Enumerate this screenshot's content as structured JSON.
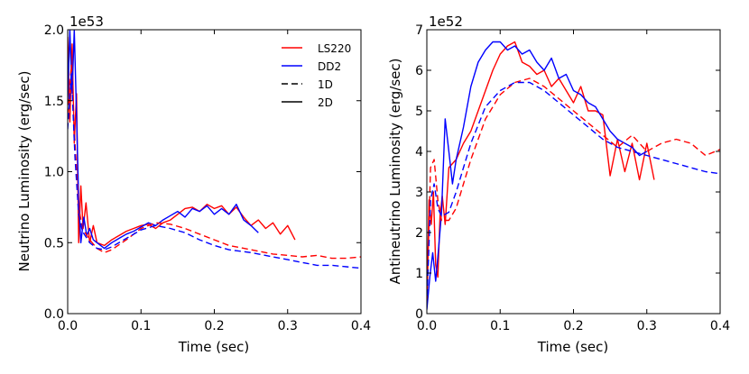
{
  "chart_data": [
    {
      "type": "line",
      "offset_label": "1e53",
      "xlabel": "Time (sec)",
      "ylabel": "Neutrino Luminosity (erg/sec)",
      "xlim": [
        0.0,
        0.4
      ],
      "ylim": [
        0.0,
        2.0
      ],
      "xticks": [
        "0.0",
        "0.1",
        "0.2",
        "0.3",
        "0.4"
      ],
      "yticks": [
        "0.0",
        "0.5",
        "1.0",
        "1.5",
        "2.0"
      ],
      "xtick_values": [
        0.0,
        0.1,
        0.2,
        0.3,
        0.4
      ],
      "ytick_values": [
        0.0,
        0.5,
        1.0,
        1.5,
        2.0
      ],
      "legend": {
        "placement": "top-right",
        "entries": [
          {
            "label": "LS220",
            "color": "#ff0000",
            "style": "solid"
          },
          {
            "label": "DD2",
            "color": "#0000ff",
            "style": "solid"
          },
          {
            "label": "1D",
            "color": "#000000",
            "style": "dashed"
          },
          {
            "label": "2D",
            "color": "#000000",
            "style": "solid"
          }
        ]
      },
      "series": [
        {
          "name": "LS220 2D",
          "color": "#ff0000",
          "style": "solid",
          "x": [
            0.0,
            0.003,
            0.006,
            0.009,
            0.012,
            0.015,
            0.018,
            0.021,
            0.025,
            0.03,
            0.035,
            0.04,
            0.05,
            0.06,
            0.07,
            0.08,
            0.09,
            0.1,
            0.11,
            0.12,
            0.13,
            0.14,
            0.15,
            0.16,
            0.17,
            0.18,
            0.19,
            0.2,
            0.21,
            0.22,
            0.23,
            0.24,
            0.25,
            0.26,
            0.27,
            0.28,
            0.29,
            0.3,
            0.31
          ],
          "y": [
            1.95,
            1.35,
            1.9,
            1.2,
            1.55,
            0.5,
            0.9,
            0.6,
            0.78,
            0.5,
            0.62,
            0.5,
            0.48,
            0.52,
            0.55,
            0.58,
            0.6,
            0.62,
            0.63,
            0.6,
            0.64,
            0.66,
            0.7,
            0.74,
            0.75,
            0.72,
            0.77,
            0.74,
            0.76,
            0.7,
            0.75,
            0.68,
            0.62,
            0.66,
            0.6,
            0.64,
            0.56,
            0.62,
            0.52
          ]
        },
        {
          "name": "DD2 2D",
          "color": "#0000ff",
          "style": "solid",
          "x": [
            0.0,
            0.003,
            0.006,
            0.009,
            0.012,
            0.015,
            0.018,
            0.022,
            0.026,
            0.03,
            0.035,
            0.04,
            0.05,
            0.06,
            0.07,
            0.08,
            0.09,
            0.1,
            0.11,
            0.12,
            0.13,
            0.14,
            0.15,
            0.16,
            0.17,
            0.18,
            0.19,
            0.2,
            0.21,
            0.22,
            0.23,
            0.24,
            0.25,
            0.26
          ],
          "y": [
            1.5,
            2.0,
            1.55,
            2.0,
            1.4,
            0.8,
            0.5,
            0.68,
            0.55,
            0.6,
            0.52,
            0.5,
            0.46,
            0.5,
            0.53,
            0.56,
            0.58,
            0.61,
            0.64,
            0.62,
            0.66,
            0.69,
            0.72,
            0.68,
            0.74,
            0.72,
            0.76,
            0.7,
            0.74,
            0.7,
            0.77,
            0.66,
            0.62,
            0.57
          ]
        },
        {
          "name": "LS220 1D",
          "color": "#ff0000",
          "style": "dashed",
          "x": [
            0.0,
            0.005,
            0.01,
            0.015,
            0.02,
            0.03,
            0.04,
            0.05,
            0.06,
            0.08,
            0.1,
            0.12,
            0.14,
            0.16,
            0.18,
            0.2,
            0.22,
            0.25,
            0.28,
            0.3,
            0.32,
            0.34,
            0.36,
            0.38,
            0.4
          ],
          "y": [
            1.4,
            1.75,
            1.2,
            0.75,
            0.6,
            0.52,
            0.46,
            0.43,
            0.45,
            0.52,
            0.6,
            0.64,
            0.63,
            0.6,
            0.56,
            0.52,
            0.48,
            0.45,
            0.42,
            0.41,
            0.4,
            0.41,
            0.39,
            0.39,
            0.4
          ]
        },
        {
          "name": "DD2 1D",
          "color": "#0000ff",
          "style": "dashed",
          "x": [
            0.0,
            0.005,
            0.01,
            0.015,
            0.02,
            0.03,
            0.04,
            0.05,
            0.06,
            0.08,
            0.1,
            0.12,
            0.14,
            0.16,
            0.18,
            0.2,
            0.22,
            0.25,
            0.28,
            0.3,
            0.32,
            0.34,
            0.36,
            0.38,
            0.4
          ],
          "y": [
            1.3,
            1.7,
            1.1,
            0.7,
            0.58,
            0.5,
            0.46,
            0.45,
            0.47,
            0.53,
            0.59,
            0.62,
            0.6,
            0.57,
            0.52,
            0.48,
            0.45,
            0.43,
            0.4,
            0.38,
            0.36,
            0.34,
            0.34,
            0.33,
            0.32
          ]
        }
      ]
    },
    {
      "type": "line",
      "offset_label": "1e52",
      "xlabel": "Time (sec)",
      "ylabel": "Antineutrino Luminosity (erg/sec)",
      "xlim": [
        0.0,
        0.4
      ],
      "ylim": [
        0,
        7
      ],
      "xticks": [
        "0.0",
        "0.1",
        "0.2",
        "0.3",
        "0.4"
      ],
      "yticks": [
        "0",
        "1",
        "2",
        "3",
        "4",
        "5",
        "6",
        "7"
      ],
      "xtick_values": [
        0.0,
        0.1,
        0.2,
        0.3,
        0.4
      ],
      "ytick_values": [
        0,
        1,
        2,
        3,
        4,
        5,
        6,
        7
      ],
      "series": [
        {
          "name": "LS220 2D",
          "color": "#ff0000",
          "style": "solid",
          "x": [
            0.0,
            0.003,
            0.006,
            0.009,
            0.012,
            0.015,
            0.018,
            0.021,
            0.025,
            0.03,
            0.04,
            0.05,
            0.06,
            0.07,
            0.08,
            0.09,
            0.1,
            0.11,
            0.12,
            0.13,
            0.14,
            0.15,
            0.16,
            0.17,
            0.18,
            0.19,
            0.2,
            0.21,
            0.22,
            0.23,
            0.24,
            0.25,
            0.26,
            0.27,
            0.28,
            0.29,
            0.3,
            0.31
          ],
          "y": [
            0.2,
            2.8,
            2.2,
            3.0,
            1.2,
            0.9,
            2.4,
            2.9,
            2.2,
            3.6,
            3.8,
            4.2,
            4.5,
            5.0,
            5.5,
            6.0,
            6.4,
            6.6,
            6.7,
            6.2,
            6.1,
            5.9,
            6.0,
            5.6,
            5.8,
            5.5,
            5.2,
            5.6,
            5.0,
            5.0,
            4.9,
            3.4,
            4.3,
            3.5,
            4.2,
            3.3,
            4.2,
            3.3
          ]
        },
        {
          "name": "DD2 2D",
          "color": "#0000ff",
          "style": "solid",
          "x": [
            0.0,
            0.004,
            0.008,
            0.012,
            0.016,
            0.02,
            0.025,
            0.03,
            0.035,
            0.04,
            0.05,
            0.06,
            0.07,
            0.08,
            0.09,
            0.1,
            0.11,
            0.12,
            0.13,
            0.14,
            0.15,
            0.16,
            0.17,
            0.18,
            0.19,
            0.2,
            0.21,
            0.22,
            0.23,
            0.24,
            0.25,
            0.26,
            0.27,
            0.28,
            0.29,
            0.3
          ],
          "y": [
            0.1,
            0.9,
            1.5,
            0.8,
            1.6,
            2.5,
            4.8,
            4.0,
            3.2,
            3.8,
            4.6,
            5.6,
            6.2,
            6.5,
            6.7,
            6.7,
            6.5,
            6.6,
            6.4,
            6.5,
            6.2,
            6.0,
            6.3,
            5.8,
            5.9,
            5.5,
            5.4,
            5.2,
            5.1,
            4.8,
            4.5,
            4.3,
            4.2,
            4.1,
            3.9,
            4.0
          ]
        },
        {
          "name": "LS220 1D",
          "color": "#ff0000",
          "style": "dashed",
          "x": [
            0.0,
            0.005,
            0.01,
            0.015,
            0.02,
            0.03,
            0.04,
            0.05,
            0.06,
            0.08,
            0.1,
            0.12,
            0.14,
            0.16,
            0.18,
            0.2,
            0.22,
            0.24,
            0.26,
            0.28,
            0.3,
            0.32,
            0.34,
            0.36,
            0.38,
            0.4
          ],
          "y": [
            0.3,
            3.6,
            3.8,
            2.8,
            2.3,
            2.3,
            2.6,
            3.2,
            3.8,
            4.8,
            5.4,
            5.7,
            5.8,
            5.6,
            5.3,
            5.0,
            4.7,
            4.4,
            4.1,
            4.4,
            4.0,
            4.2,
            4.3,
            4.2,
            3.9,
            4.05
          ]
        },
        {
          "name": "DD2 1D",
          "color": "#0000ff",
          "style": "dashed",
          "x": [
            0.0,
            0.005,
            0.01,
            0.015,
            0.02,
            0.03,
            0.04,
            0.05,
            0.06,
            0.08,
            0.1,
            0.12,
            0.14,
            0.16,
            0.18,
            0.2,
            0.22,
            0.24,
            0.26,
            0.28,
            0.3,
            0.32,
            0.34,
            0.36,
            0.38,
            0.4
          ],
          "y": [
            0.2,
            2.8,
            3.2,
            2.6,
            2.4,
            2.5,
            3.0,
            3.6,
            4.2,
            5.1,
            5.5,
            5.7,
            5.7,
            5.5,
            5.2,
            4.9,
            4.6,
            4.3,
            4.1,
            4.0,
            3.9,
            3.8,
            3.7,
            3.6,
            3.5,
            3.45
          ]
        }
      ]
    }
  ]
}
